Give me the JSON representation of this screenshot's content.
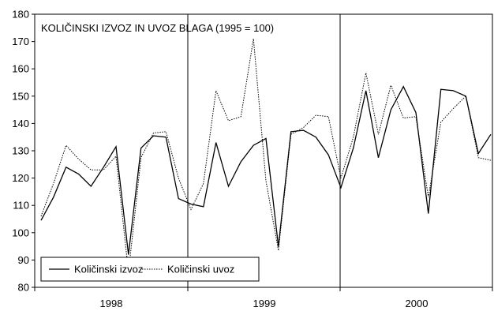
{
  "chart_data": {
    "type": "line",
    "title": "KOLIČINSKI IZVOZ IN UVOZ BLAGA (1995 = 100)",
    "xlabel": "",
    "ylabel": "",
    "ylim": [
      80,
      180
    ],
    "yticks": [
      80,
      90,
      100,
      110,
      120,
      130,
      140,
      150,
      160,
      170,
      180
    ],
    "x_year_labels": [
      "1998",
      "1999",
      "2000"
    ],
    "grid": "vertical lines at year boundaries",
    "legend_position": "bottom-left",
    "series": [
      {
        "name": "Količinski izvoz",
        "style": "solid",
        "color": "#000000",
        "values": [
          104.5,
          113,
          124,
          121.5,
          117,
          124,
          131.5,
          92,
          131,
          135.5,
          135,
          112.5,
          110.5,
          109.5,
          133,
          117,
          126,
          132,
          134.5,
          95,
          137,
          137.5,
          135,
          128.5,
          116.5,
          131,
          152,
          127.5,
          145,
          153.5,
          144,
          107,
          152.5,
          152,
          150,
          129,
          136
        ]
      },
      {
        "name": "Količinski uvoz",
        "style": "dotted",
        "color": "#000000",
        "values": [
          106,
          118,
          132,
          127,
          123,
          123,
          128,
          85.5,
          127.5,
          136.5,
          137,
          120,
          108.5,
          118,
          152,
          141,
          142.5,
          171,
          119,
          93.5,
          136,
          138.5,
          143,
          142.5,
          120,
          135,
          158.5,
          136,
          154,
          142,
          142.5,
          113,
          140.5,
          145.5,
          150,
          127.5,
          126.5
        ]
      }
    ]
  }
}
